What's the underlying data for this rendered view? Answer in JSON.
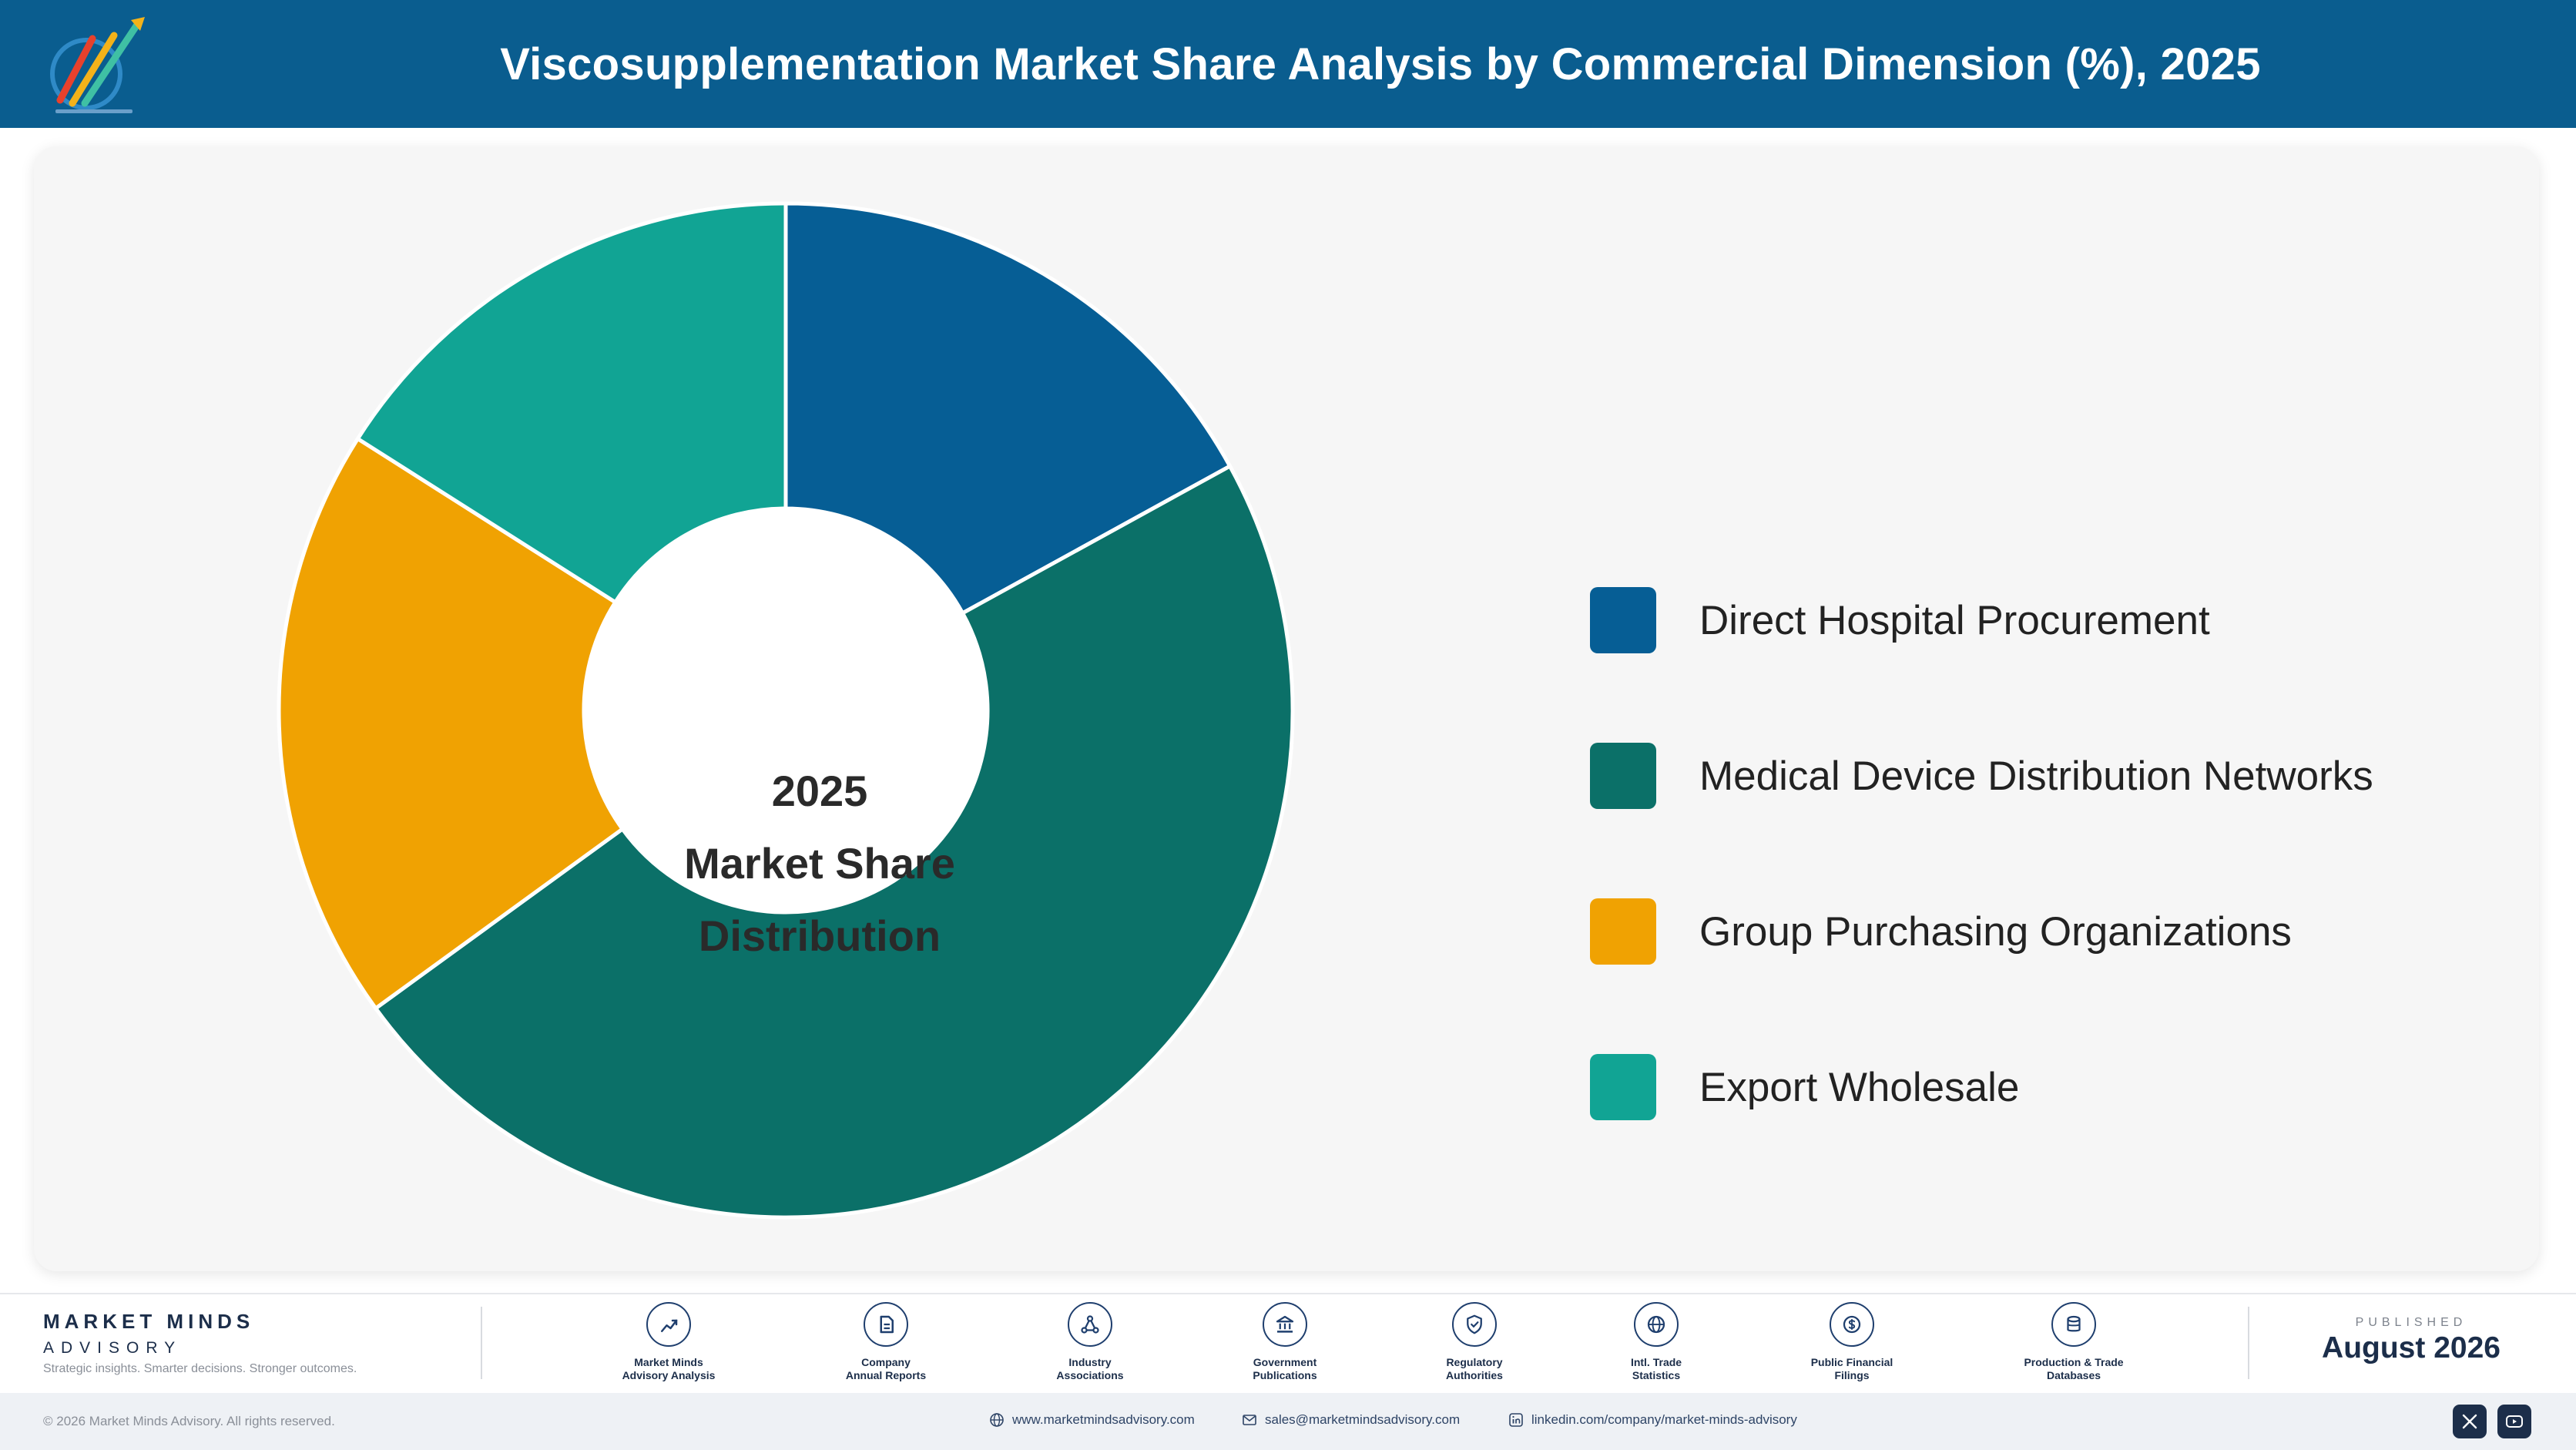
{
  "header": {
    "title": "Viscosupplementation Market Share Analysis by Commercial Dimension (%), 2025"
  },
  "chart_data": {
    "type": "pie",
    "style": "donut",
    "categories": [
      "Direct Hospital Procurement",
      "Medical Device Distribution Networks",
      "Group Purchasing Organizations",
      "Export Wholesale"
    ],
    "values": [
      17,
      48,
      19,
      16
    ],
    "colors": [
      "#065e95",
      "#0b7068",
      "#f0a202",
      "#11a494"
    ],
    "center_label_lines": [
      "2025",
      "Market Share",
      "Distribution"
    ],
    "legend_position": "right"
  },
  "footer": {
    "brand_name": "MARKET MINDS",
    "brand_sub": "ADVISORY",
    "brand_tagline": "Strategic insights. Smarter decisions. Stronger outcomes.",
    "sources": [
      {
        "label": "Market Minds\nAdvisory Analysis",
        "icon": "trend-chart-icon"
      },
      {
        "label": "Company\nAnnual Reports",
        "icon": "document-icon"
      },
      {
        "label": "Industry\nAssociations",
        "icon": "network-icon"
      },
      {
        "label": "Government\nPublications",
        "icon": "government-building-icon"
      },
      {
        "label": "Regulatory\nAuthorities",
        "icon": "shield-check-icon"
      },
      {
        "label": "Intl. Trade\nStatistics",
        "icon": "globe-icon"
      },
      {
        "label": "Public Financial\nFilings",
        "icon": "currency-icon"
      },
      {
        "label": "Production & Trade\nDatabases",
        "icon": "database-icon"
      }
    ],
    "published_label": "PUBLISHED",
    "published_date": "August 2026",
    "copyright": "© 2026 Market Minds Advisory. All rights reserved.",
    "website": "www.marketmindsadvisory.com",
    "email": "sales@marketmindsadvisory.com",
    "linkedin": "linkedin.com/company/market-minds-advisory"
  }
}
